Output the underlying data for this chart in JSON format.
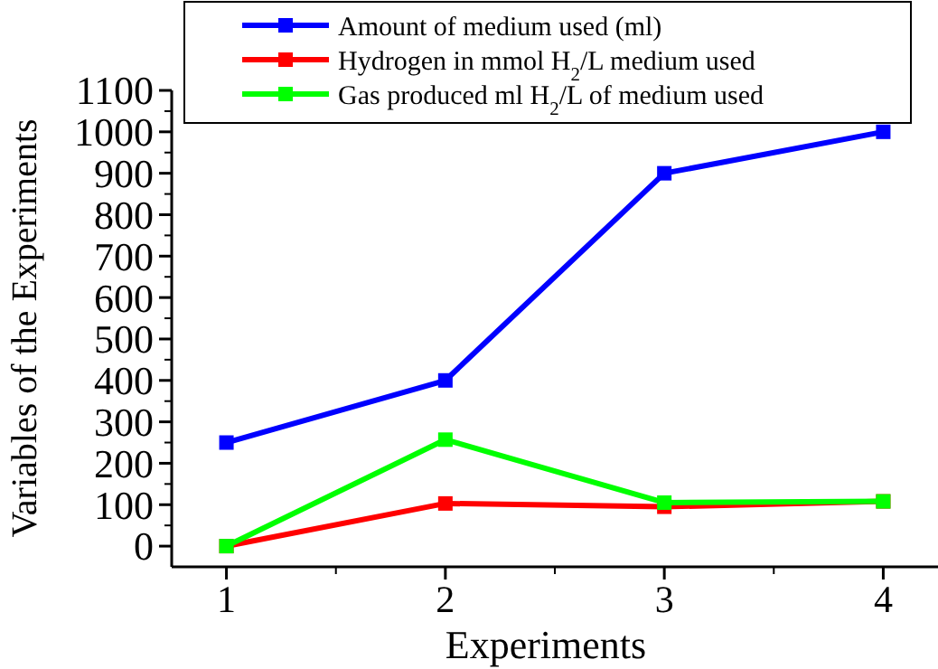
{
  "chart_data": {
    "type": "line",
    "xlabel": "Experiments",
    "ylabel": "Variables of the Experiments",
    "x": [
      1,
      2,
      3,
      4
    ],
    "xlim": [
      0.75,
      4.25
    ],
    "xticks": [
      1,
      2,
      3,
      4
    ],
    "ylim": [
      -50,
      1100
    ],
    "yticks": [
      0,
      100,
      200,
      300,
      400,
      500,
      600,
      700,
      800,
      900,
      1000,
      1100
    ],
    "marker": "square",
    "line_style": "solid",
    "legend": "top",
    "grid": false,
    "series": [
      {
        "name": "Amount of medium used (ml)",
        "color": "#0000ff",
        "values": [
          250,
          400,
          900,
          1000
        ]
      },
      {
        "name": "Hydrogen in mmol H$_{2}$/L medium used",
        "color": "#ff0000",
        "values": [
          0,
          103,
          95,
          108
        ]
      },
      {
        "name": "Gas produced ml H$_{2}$/L of medium used",
        "color": "#00ff00",
        "values": [
          0,
          257,
          105,
          108
        ]
      }
    ]
  }
}
